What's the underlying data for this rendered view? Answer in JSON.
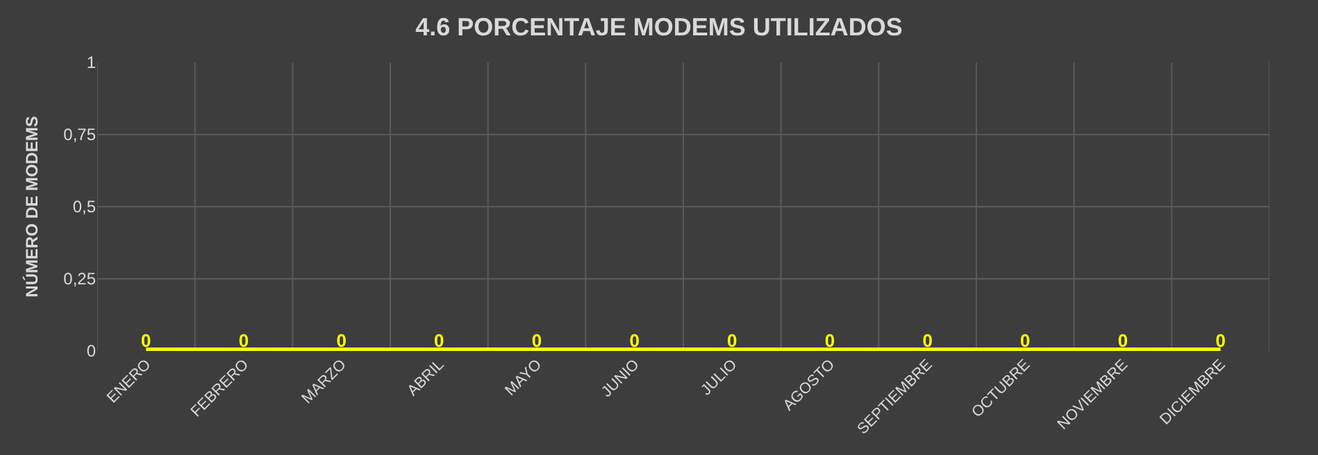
{
  "chart_data": {
    "type": "line",
    "title": "4.6 PORCENTAJE MODEMS UTILIZADOS",
    "ylabel": "NÚMERO DE MODEMS",
    "categories": [
      "ENERO",
      "FEBRERO",
      "MARZO",
      "ABRIL",
      "MAYO",
      "JUNIO",
      "JULIO",
      "AGOSTO",
      "SEPTIEMBRE",
      "OCTUBRE",
      "NOVIEMBRE",
      "DICIEMBRE"
    ],
    "series": [
      {
        "color": "#ffff00",
        "values": [
          0,
          0,
          0,
          0,
          0,
          0,
          0,
          0,
          0,
          0,
          0,
          0
        ]
      }
    ],
    "ylim": [
      0,
      1
    ],
    "yticks": [
      0,
      {
        "value": 0.25,
        "label": "0,25"
      },
      {
        "value": 0.5,
        "label": "0,5"
      },
      {
        "value": 0.75,
        "label": "0,75"
      },
      1
    ],
    "grid": true,
    "marker": "none",
    "line_style": "solid",
    "data_labels": true
  }
}
